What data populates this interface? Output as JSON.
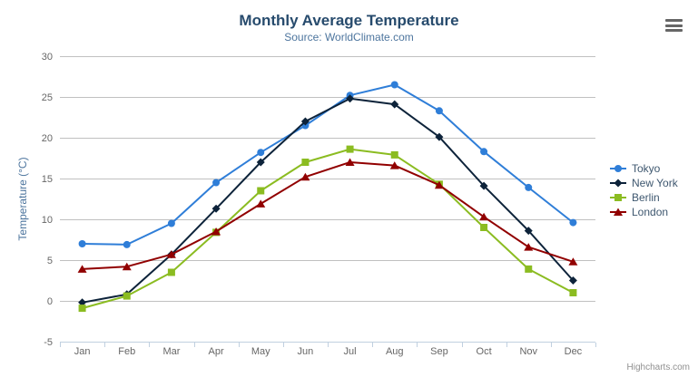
{
  "chart_data": {
    "type": "line",
    "title": "Monthly Average Temperature",
    "subtitle": "Source: WorldClimate.com",
    "categories": [
      "Jan",
      "Feb",
      "Mar",
      "Apr",
      "May",
      "Jun",
      "Jul",
      "Aug",
      "Sep",
      "Oct",
      "Nov",
      "Dec"
    ],
    "xlabel": "",
    "ylabel": "Temperature (°C)",
    "ylim": [
      -5,
      30
    ],
    "yticks": [
      -5,
      0,
      5,
      10,
      15,
      20,
      25,
      30
    ],
    "grid": true,
    "legend_position": "right",
    "series": [
      {
        "name": "Tokyo",
        "marker": "circle",
        "color": "#2f7ed8",
        "values": [
          7.0,
          6.9,
          9.5,
          14.5,
          18.2,
          21.5,
          25.2,
          26.5,
          23.3,
          18.3,
          13.9,
          9.6
        ]
      },
      {
        "name": "New York",
        "marker": "diamond",
        "color": "#0d233a",
        "values": [
          -0.2,
          0.8,
          5.7,
          11.3,
          17.0,
          22.0,
          24.8,
          24.1,
          20.1,
          14.1,
          8.6,
          2.5
        ]
      },
      {
        "name": "Berlin",
        "marker": "square",
        "color": "#8bbc21",
        "values": [
          -0.9,
          0.6,
          3.5,
          8.4,
          13.5,
          17.0,
          18.6,
          17.9,
          14.3,
          9.0,
          3.9,
          1.0
        ]
      },
      {
        "name": "London",
        "marker": "triangle",
        "color": "#910000",
        "values": [
          3.9,
          4.2,
          5.7,
          8.5,
          11.9,
          15.2,
          17.0,
          16.6,
          14.2,
          10.3,
          6.6,
          4.8
        ]
      }
    ]
  },
  "credits": {
    "label": "Highcharts.com"
  },
  "colors": {
    "background": "#ffffff",
    "title": "#274b6d",
    "subtitle": "#4d759e",
    "axis_title": "#4d759e",
    "axis_label": "#666666",
    "grid": "#c0c0c0",
    "axis_line": "#c0d0e0",
    "tick": "#c0d0e0",
    "legend_text": "#3e576f",
    "burger": "#666666",
    "credits_text": "#909090"
  }
}
